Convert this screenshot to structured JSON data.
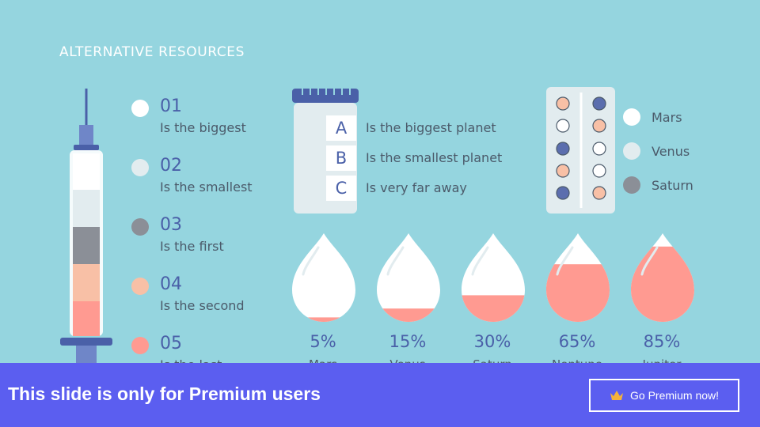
{
  "slide": {
    "title": "ALTERNATIVE RESOURCES"
  },
  "list": [
    {
      "num": "01",
      "text": "Is the biggest",
      "color": "#ffffff"
    },
    {
      "num": "02",
      "text": "Is the smallest",
      "color": "#e2ecef"
    },
    {
      "num": "03",
      "text": "Is the first",
      "color": "#8b8f97"
    },
    {
      "num": "04",
      "text": "Is the second",
      "color": "#f8c0a6"
    },
    {
      "num": "05",
      "text": "Is the last",
      "color": "#ff9a91"
    }
  ],
  "bottle": [
    {
      "letter": "A",
      "text": "Is the biggest planet"
    },
    {
      "letter": "B",
      "text": "Is the smallest planet"
    },
    {
      "letter": "C",
      "text": "Is very far away"
    }
  ],
  "legend": [
    {
      "label": "Mars",
      "color": "#ffffff"
    },
    {
      "label": "Venus",
      "color": "#e2ecef"
    },
    {
      "label": "Saturn",
      "color": "#8b8f97"
    }
  ],
  "drops": [
    {
      "percent": "5%",
      "fill": 0.05,
      "label": "Mars"
    },
    {
      "percent": "15%",
      "fill": 0.15,
      "label": "Venus"
    },
    {
      "percent": "30%",
      "fill": 0.3,
      "label": "Saturn"
    },
    {
      "percent": "65%",
      "fill": 0.65,
      "label": "Neptune"
    },
    {
      "percent": "85%",
      "fill": 0.85,
      "label": "Jupiter"
    }
  ],
  "banner": {
    "message": "This slide is only for Premium users",
    "button_label": "Go Premium now!"
  },
  "colors": {
    "background": "#95d5df",
    "accent": "#4a60a8",
    "drop_fill": "#ff9a91",
    "banner": "#5b5ef0"
  }
}
